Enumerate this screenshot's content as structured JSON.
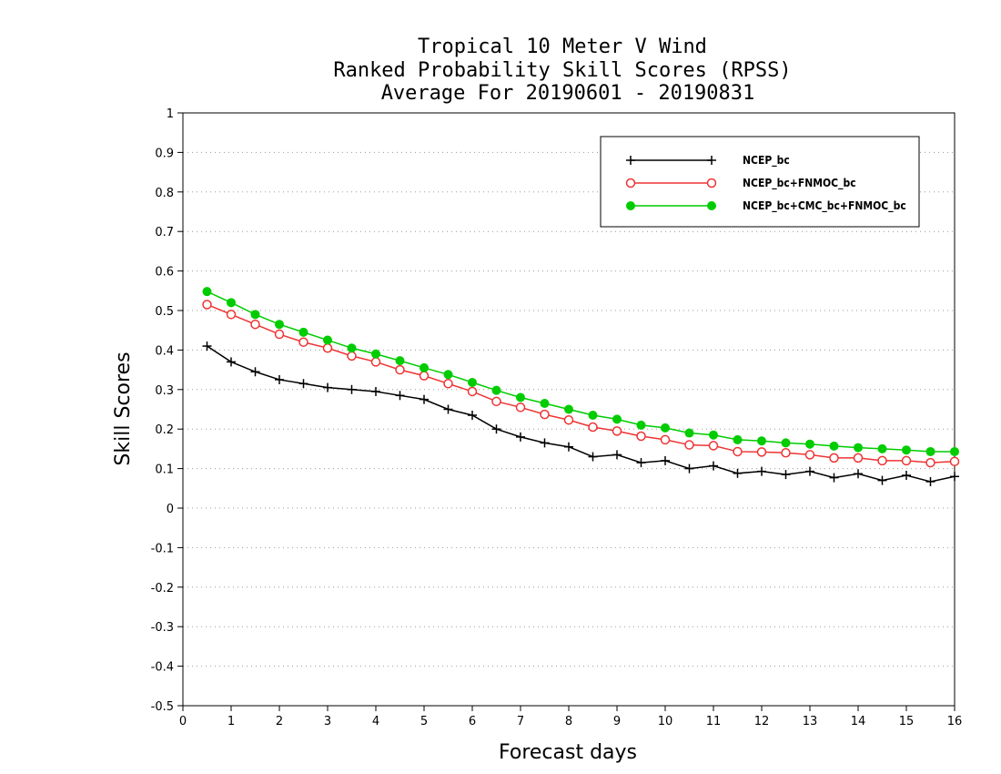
{
  "chart_data": {
    "type": "line",
    "title": "Tropical 10 Meter V Wind",
    "subtitle": "Ranked Probability Skill Scores (RPSS)",
    "subtitle2": "Average For 20190601 - 20190831",
    "xlabel": "Forecast days",
    "ylabel": "Skill Scores",
    "xlim": [
      0,
      16
    ],
    "ylim": [
      -0.5,
      1
    ],
    "xticks": [
      "0",
      "1",
      "2",
      "3",
      "4",
      "5",
      "6",
      "7",
      "8",
      "9",
      "10",
      "11",
      "12",
      "13",
      "14",
      "15",
      "16"
    ],
    "yticks": [
      "1",
      "0.9",
      "0.8",
      "0.7",
      "0.6",
      "0.5",
      "0.4",
      "0.3",
      "0.2",
      "0.1",
      "0",
      "-0.1",
      "-0.2",
      "-0.3",
      "-0.4",
      "-0.5"
    ],
    "grid": true,
    "legend_position": "top-right",
    "x": [
      0.5,
      1,
      1.5,
      2,
      2.5,
      3,
      3.5,
      4,
      4.5,
      5,
      5.5,
      6,
      6.5,
      7,
      7.5,
      8,
      8.5,
      9,
      9.5,
      10,
      10.5,
      11,
      11.5,
      12,
      12.5,
      13,
      13.5,
      14,
      14.5,
      15,
      15.5,
      16
    ],
    "series": [
      {
        "name": "NCEP_bc",
        "color": "#000000",
        "marker": "plus",
        "values": [
          0.41,
          0.37,
          0.345,
          0.325,
          0.315,
          0.305,
          0.3,
          0.295,
          0.285,
          0.275,
          0.25,
          0.235,
          0.2,
          0.18,
          0.165,
          0.155,
          0.13,
          0.135,
          0.115,
          0.12,
          0.1,
          0.107,
          0.088,
          0.093,
          0.085,
          0.093,
          0.077,
          0.087,
          0.07,
          0.083,
          0.067,
          0.08
        ]
      },
      {
        "name": "NCEP_bc+FNMOC_bc",
        "color": "#ee3333",
        "marker": "open-circle",
        "values": [
          0.515,
          0.49,
          0.465,
          0.44,
          0.42,
          0.405,
          0.385,
          0.37,
          0.35,
          0.335,
          0.315,
          0.295,
          0.27,
          0.255,
          0.237,
          0.223,
          0.205,
          0.195,
          0.182,
          0.173,
          0.16,
          0.158,
          0.143,
          0.142,
          0.14,
          0.135,
          0.127,
          0.127,
          0.12,
          0.12,
          0.115,
          0.118
        ]
      },
      {
        "name": "NCEP_bc+CMC_bc+FNMOC_bc",
        "color": "#00cc00",
        "marker": "filled-circle",
        "values": [
          0.548,
          0.52,
          0.49,
          0.465,
          0.445,
          0.425,
          0.405,
          0.39,
          0.373,
          0.355,
          0.338,
          0.318,
          0.298,
          0.28,
          0.265,
          0.25,
          0.235,
          0.225,
          0.21,
          0.203,
          0.19,
          0.185,
          0.173,
          0.17,
          0.165,
          0.162,
          0.157,
          0.153,
          0.15,
          0.147,
          0.143,
          0.143
        ]
      }
    ]
  }
}
